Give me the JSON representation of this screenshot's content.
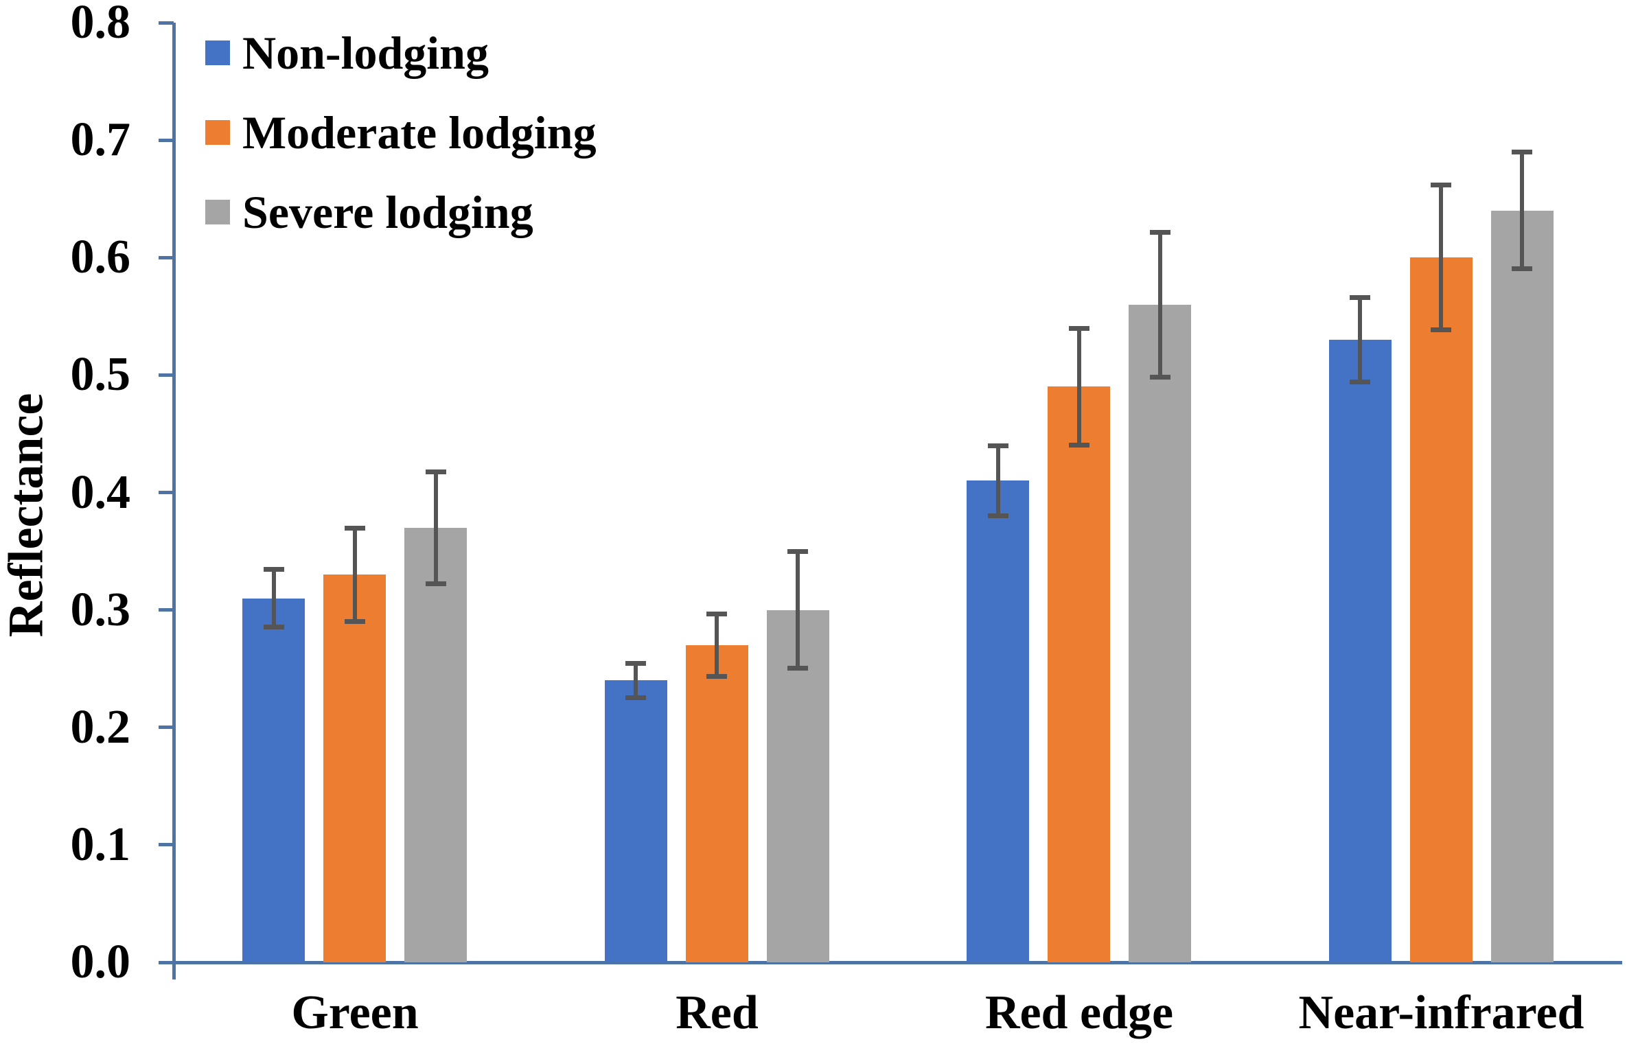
{
  "chart_data": {
    "type": "bar",
    "categories": [
      "Green",
      "Red",
      "Red edge",
      "Near-infrared"
    ],
    "series": [
      {
        "name": "Non-lodging",
        "color": "#4472C4",
        "values": [
          0.31,
          0.24,
          0.41,
          0.53
        ],
        "errors": [
          0.025,
          0.015,
          0.03,
          0.036
        ]
      },
      {
        "name": "Moderate lodging",
        "color": "#ED7D31",
        "values": [
          0.33,
          0.27,
          0.49,
          0.6
        ],
        "errors": [
          0.04,
          0.027,
          0.05,
          0.062
        ]
      },
      {
        "name": "Severe lodging",
        "color": "#A5A5A5",
        "values": [
          0.37,
          0.3,
          0.56,
          0.64
        ],
        "errors": [
          0.048,
          0.05,
          0.062,
          0.05
        ]
      }
    ],
    "ylabel": "Reflectance",
    "ylim": [
      0.0,
      0.8
    ],
    "ytick_step": 0.1,
    "yticks": [
      "0.0",
      "0.1",
      "0.2",
      "0.3",
      "0.4",
      "0.5",
      "0.6",
      "0.7",
      "0.8"
    ],
    "grid": false,
    "legend_position": "top-left-inside",
    "colors": {
      "axis": "#4E74A6",
      "error_bar": "#555555",
      "text": "#000000",
      "background": "#FFFFFF"
    }
  }
}
